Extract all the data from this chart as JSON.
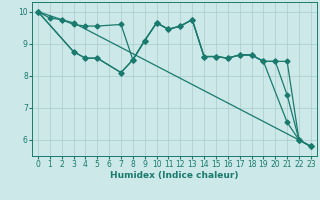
{
  "xlabel": "Humidex (Indice chaleur)",
  "bg_color": "#cce8e8",
  "grid_color": "#aacccc",
  "line_color": "#1a7a6e",
  "markersize": 2.5,
  "linewidth": 0.9,
  "xlim": [
    -0.5,
    23.5
  ],
  "ylim": [
    5.5,
    10.3
  ],
  "yticks": [
    6,
    7,
    8,
    9,
    10
  ],
  "xticks": [
    0,
    1,
    2,
    3,
    4,
    5,
    6,
    7,
    8,
    9,
    10,
    11,
    12,
    13,
    14,
    15,
    16,
    17,
    18,
    19,
    20,
    21,
    22,
    23
  ],
  "lines": [
    {
      "x": [
        0,
        1,
        2,
        3,
        22,
        23
      ],
      "y": [
        10.0,
        9.8,
        9.75,
        9.65,
        6.0,
        5.8
      ]
    },
    {
      "x": [
        0,
        2,
        3,
        4,
        5,
        7,
        8,
        9,
        10,
        11,
        12,
        13,
        14,
        15,
        16,
        17,
        18,
        19,
        20,
        21,
        22,
        23
      ],
      "y": [
        10.0,
        9.75,
        9.6,
        9.55,
        9.55,
        9.6,
        8.5,
        9.1,
        9.65,
        9.45,
        9.55,
        9.75,
        8.6,
        8.6,
        8.55,
        8.65,
        8.65,
        8.45,
        8.45,
        8.45,
        6.0,
        5.8
      ]
    },
    {
      "x": [
        0,
        3,
        4,
        5,
        7,
        8,
        9,
        10,
        11,
        12,
        13,
        14,
        15,
        16,
        17,
        18,
        19,
        20,
        21,
        22,
        23
      ],
      "y": [
        10.0,
        8.75,
        8.55,
        8.55,
        8.1,
        8.5,
        9.1,
        9.65,
        9.45,
        9.55,
        9.75,
        8.6,
        8.6,
        8.55,
        8.65,
        8.65,
        8.45,
        8.45,
        7.4,
        6.0,
        5.8
      ]
    },
    {
      "x": [
        0,
        3,
        4,
        5,
        7,
        8,
        9,
        10,
        11,
        12,
        13,
        14,
        15,
        16,
        17,
        18,
        19,
        21,
        22,
        23
      ],
      "y": [
        10.0,
        8.75,
        8.55,
        8.55,
        8.1,
        8.5,
        9.1,
        9.65,
        9.45,
        9.55,
        9.75,
        8.6,
        8.6,
        8.55,
        8.65,
        8.65,
        8.45,
        6.55,
        6.0,
        5.8
      ]
    }
  ]
}
